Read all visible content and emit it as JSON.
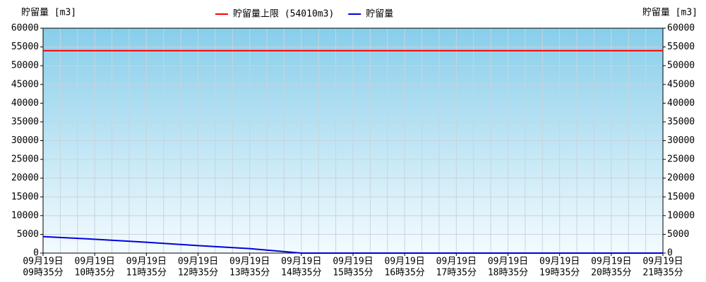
{
  "chart_data": {
    "type": "line",
    "y_label": "貯留量 [m3]",
    "y2_label": "貯留量 [m3]",
    "categories": [
      [
        "09月19日",
        "09時35分"
      ],
      [
        "09月19日",
        "10時35分"
      ],
      [
        "09月19日",
        "11時35分"
      ],
      [
        "09月19日",
        "12時35分"
      ],
      [
        "09月19日",
        "13時35分"
      ],
      [
        "09月19日",
        "14時35分"
      ],
      [
        "09月19日",
        "15時35分"
      ],
      [
        "09月19日",
        "16時35分"
      ],
      [
        "09月19日",
        "17時35分"
      ],
      [
        "09月19日",
        "18時35分"
      ],
      [
        "09月19日",
        "19時35分"
      ],
      [
        "09月19日",
        "20時35分"
      ],
      [
        "09月19日",
        "21時35分"
      ]
    ],
    "series": [
      {
        "name": "貯留量上限 (54010m3)",
        "color": "#ff0000",
        "values": [
          54010,
          54010,
          54010,
          54010,
          54010,
          54010,
          54010,
          54010,
          54010,
          54010,
          54010,
          54010,
          54010
        ]
      },
      {
        "name": "貯留量",
        "color": "#0000dd",
        "values": [
          4400,
          3700,
          2900,
          2000,
          1200,
          0,
          0,
          0,
          0,
          0,
          0,
          0,
          0
        ]
      }
    ],
    "ylim": [
      0,
      60000
    ],
    "yticks": [
      0,
      5000,
      10000,
      15000,
      20000,
      25000,
      30000,
      35000,
      40000,
      45000,
      50000,
      55000,
      60000
    ],
    "y2lim": [
      0,
      60000
    ],
    "y2ticks": [
      0,
      5000,
      10000,
      15000,
      20000,
      25000,
      30000,
      35000,
      40000,
      45000,
      50000,
      55000,
      60000
    ],
    "grid": true
  }
}
